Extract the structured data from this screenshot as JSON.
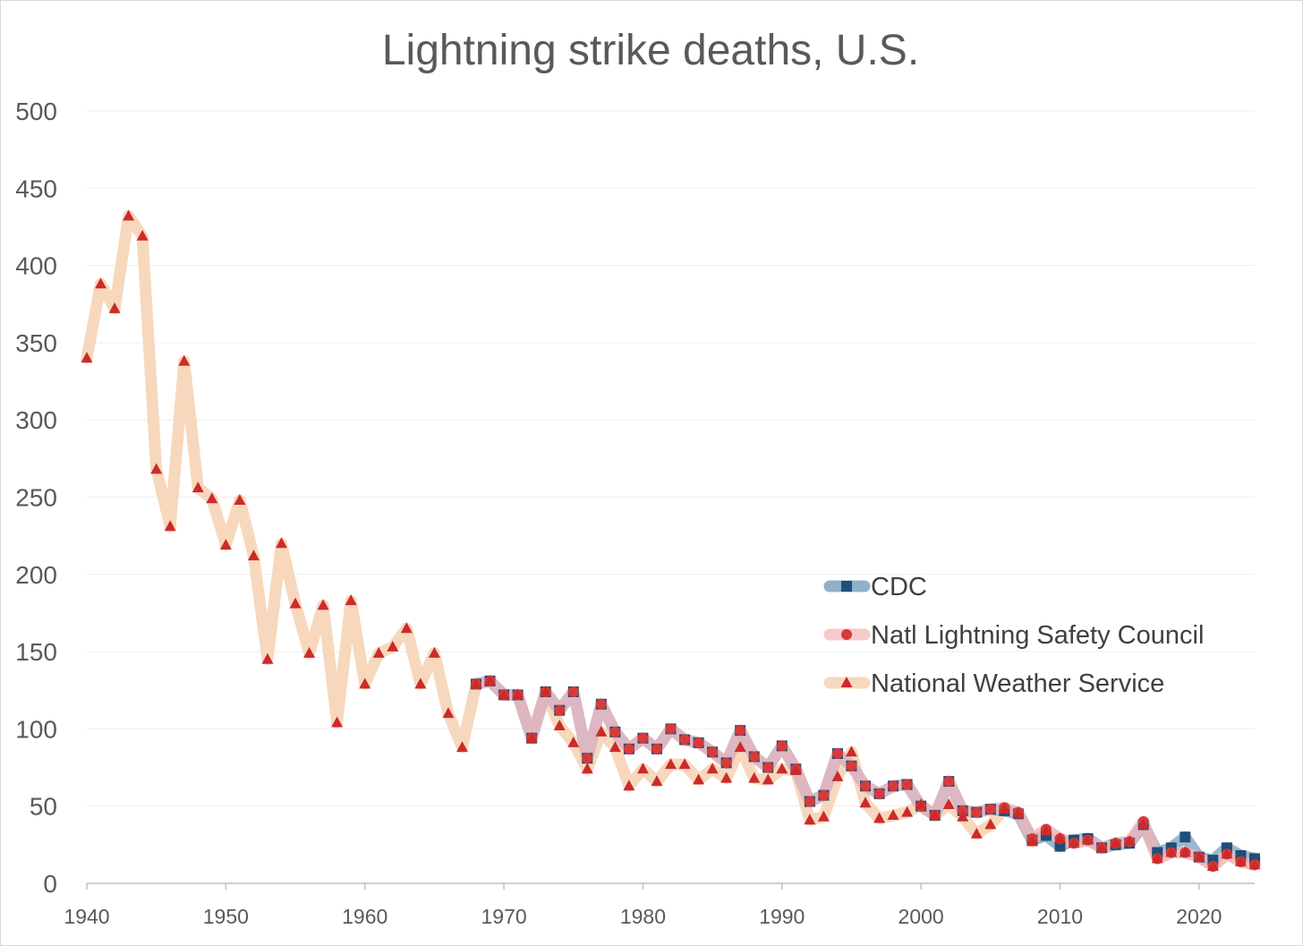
{
  "chart_data": {
    "type": "line",
    "title": "Lightning strike deaths, U.S.",
    "xlabel": "",
    "ylabel": "",
    "xlim": [
      1940,
      2024
    ],
    "ylim": [
      0,
      500
    ],
    "grid": true,
    "legend_position": "center-right",
    "y_ticks": [
      "0",
      "50",
      "100",
      "150",
      "200",
      "250",
      "300",
      "350",
      "400",
      "450",
      "500"
    ],
    "x_ticks": [
      "1940",
      "1950",
      "1960",
      "1970",
      "1980",
      "1990",
      "2000",
      "2010",
      "2020"
    ],
    "colors": {
      "cdc_line": "#8fb0c8",
      "cdc_marker": "#1f4e79",
      "nlsc_line": "#f3b7bd",
      "nlsc_marker": "#d63a3a",
      "nws_line": "#f7d8bd",
      "nws_marker": "#cc2b2b",
      "grid": "#eeeeee",
      "text": "#595959"
    },
    "series": [
      {
        "name": "CDC",
        "marker": "square",
        "x": [
          1968,
          1969,
          1970,
          1971,
          1972,
          1973,
          1974,
          1975,
          1976,
          1977,
          1978,
          1979,
          1980,
          1981,
          1982,
          1983,
          1984,
          1985,
          1986,
          1987,
          1988,
          1989,
          1990,
          1991,
          1992,
          1993,
          1994,
          1995,
          1996,
          1997,
          1998,
          1999,
          2000,
          2001,
          2002,
          2003,
          2004,
          2005,
          2006,
          2007,
          2008,
          2009,
          2010,
          2011,
          2012,
          2013,
          2014,
          2015,
          2016,
          2017,
          2018,
          2019,
          2020,
          2021,
          2022,
          2023,
          2024
        ],
        "values": [
          129,
          131,
          122,
          122,
          94,
          124,
          112,
          124,
          81,
          116,
          98,
          87,
          94,
          87,
          100,
          93,
          91,
          85,
          78,
          99,
          82,
          75,
          89,
          74,
          53,
          57,
          84,
          76,
          63,
          58,
          63,
          64,
          50,
          44,
          66,
          47,
          46,
          48,
          47,
          45,
          28,
          31,
          24,
          28,
          29,
          23,
          25,
          26,
          38,
          20,
          23,
          30,
          17,
          15,
          23,
          18,
          16
        ]
      },
      {
        "name": "Natl Lightning Safety Council",
        "marker": "circle",
        "x": [
          1968,
          1969,
          1970,
          1971,
          1972,
          1973,
          1974,
          1975,
          1976,
          1977,
          1978,
          1979,
          1980,
          1981,
          1982,
          1983,
          1984,
          1985,
          1986,
          1987,
          1988,
          1989,
          1990,
          1991,
          1992,
          1993,
          1994,
          1995,
          1996,
          1997,
          1998,
          1999,
          2000,
          2001,
          2002,
          2003,
          2004,
          2005,
          2006,
          2007,
          2008,
          2009,
          2010,
          2011,
          2012,
          2013,
          2014,
          2015,
          2016,
          2017,
          2018,
          2019,
          2020,
          2021,
          2022,
          2023,
          2024
        ],
        "values": [
          129,
          131,
          122,
          122,
          94,
          124,
          112,
          124,
          81,
          116,
          98,
          87,
          94,
          87,
          100,
          93,
          91,
          85,
          78,
          99,
          82,
          75,
          89,
          74,
          53,
          57,
          84,
          76,
          63,
          58,
          63,
          64,
          50,
          44,
          66,
          47,
          46,
          48,
          49,
          46,
          29,
          35,
          29,
          26,
          28,
          23,
          26,
          27,
          40,
          16,
          20,
          20,
          17,
          11,
          19,
          14,
          12
        ]
      },
      {
        "name": "National Weather Service",
        "marker": "triangle",
        "x": [
          1940,
          1941,
          1942,
          1943,
          1944,
          1945,
          1946,
          1947,
          1948,
          1949,
          1950,
          1951,
          1952,
          1953,
          1954,
          1955,
          1956,
          1957,
          1958,
          1959,
          1960,
          1961,
          1962,
          1963,
          1964,
          1965,
          1966,
          1967,
          1968,
          1969,
          1970,
          1971,
          1972,
          1973,
          1974,
          1975,
          1976,
          1977,
          1978,
          1979,
          1980,
          1981,
          1982,
          1983,
          1984,
          1985,
          1986,
          1987,
          1988,
          1989,
          1990,
          1991,
          1992,
          1993,
          1994,
          1995,
          1996,
          1997,
          1998,
          1999,
          2000,
          2001,
          2002,
          2003,
          2004,
          2005,
          2006,
          2007,
          2008,
          2009,
          2010,
          2011,
          2012,
          2013,
          2014,
          2015,
          2016,
          2017,
          2018,
          2019,
          2020,
          2021,
          2022,
          2023,
          2024
        ],
        "values": [
          340,
          388,
          372,
          432,
          419,
          268,
          231,
          338,
          256,
          249,
          219,
          248,
          212,
          145,
          220,
          181,
          149,
          180,
          104,
          183,
          129,
          149,
          153,
          165,
          129,
          149,
          110,
          88,
          129,
          131,
          122,
          122,
          94,
          124,
          102,
          91,
          74,
          98,
          88,
          63,
          74,
          66,
          77,
          77,
          67,
          74,
          68,
          88,
          68,
          67,
          74,
          73,
          41,
          43,
          69,
          85,
          52,
          42,
          44,
          46,
          51,
          44,
          51,
          43,
          32,
          38,
          48,
          45,
          27,
          34,
          29,
          26,
          28,
          23,
          26,
          27,
          38,
          16,
          20,
          20,
          17,
          11,
          19,
          14,
          12
        ]
      }
    ]
  }
}
